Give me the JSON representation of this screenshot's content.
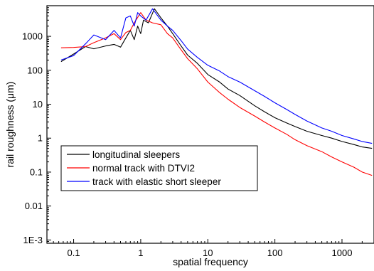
{
  "chart_data": {
    "type": "line",
    "title": "",
    "xlabel": "spatial frequency",
    "ylabel": "rail roughness (μm)",
    "x_scale": "log",
    "y_scale": "log",
    "xlim": [
      0.04,
      3000
    ],
    "ylim": [
      0.0008,
      8000
    ],
    "x_ticks": [
      {
        "value": 0.1,
        "label": "0.1"
      },
      {
        "value": 1,
        "label": "1"
      },
      {
        "value": 10,
        "label": "10"
      },
      {
        "value": 100,
        "label": "100"
      },
      {
        "value": 1000,
        "label": "1000"
      }
    ],
    "y_ticks": [
      {
        "value": 0.001,
        "label": "1E-3"
      },
      {
        "value": 0.01,
        "label": "0.01"
      },
      {
        "value": 0.1,
        "label": "0.1"
      },
      {
        "value": 1,
        "label": "1"
      },
      {
        "value": 10,
        "label": "10"
      },
      {
        "value": 100,
        "label": "100"
      },
      {
        "value": 1000,
        "label": "1000"
      }
    ],
    "grid": false,
    "legend_position": "lower-left",
    "series": [
      {
        "name": "longitudinal sleepers",
        "color": "#000000",
        "x": [
          0.065,
          0.1,
          0.15,
          0.2,
          0.3,
          0.4,
          0.5,
          0.6,
          0.7,
          0.8,
          0.9,
          1.0,
          1.1,
          1.3,
          1.6,
          2.0,
          2.5,
          3,
          4,
          5,
          7,
          10,
          15,
          20,
          30,
          50,
          70,
          100,
          150,
          200,
          300,
          500,
          700,
          1000,
          1500,
          2000,
          2800
        ],
        "y": [
          180,
          300,
          500,
          430,
          520,
          580,
          480,
          900,
          1500,
          800,
          2000,
          1200,
          3000,
          2500,
          6500,
          3500,
          2000,
          1200,
          520,
          280,
          160,
          75,
          45,
          28,
          18,
          9,
          6,
          4,
          2.8,
          2.2,
          1.6,
          1.2,
          1.0,
          0.8,
          0.65,
          0.55,
          0.5
        ]
      },
      {
        "name": "normal track with DTVI2",
        "color": "#ff0000",
        "x": [
          0.065,
          0.1,
          0.15,
          0.2,
          0.3,
          0.4,
          0.5,
          0.6,
          0.7,
          0.8,
          1.0,
          1.2,
          1.5,
          2.0,
          2.5,
          3,
          4,
          5,
          7,
          10,
          15,
          20,
          30,
          50,
          70,
          100,
          150,
          200,
          300,
          500,
          700,
          1000,
          1500,
          2000,
          2800
        ],
        "y": [
          460,
          470,
          500,
          650,
          900,
          1200,
          800,
          1300,
          1500,
          2500,
          5000,
          3000,
          2500,
          2200,
          1200,
          900,
          400,
          220,
          110,
          45,
          22,
          14,
          8,
          4.5,
          3,
          2,
          1.3,
          0.9,
          0.6,
          0.4,
          0.28,
          0.2,
          0.14,
          0.1,
          0.08
        ]
      },
      {
        "name": "track with elastic short sleeper",
        "color": "#0000ff",
        "x": [
          0.065,
          0.1,
          0.15,
          0.2,
          0.3,
          0.4,
          0.5,
          0.6,
          0.7,
          0.8,
          0.9,
          1.0,
          1.2,
          1.5,
          2.0,
          2.5,
          3,
          4,
          5,
          7,
          10,
          15,
          20,
          30,
          50,
          70,
          100,
          150,
          200,
          300,
          500,
          700,
          1000,
          1500,
          2000,
          2800
        ],
        "y": [
          200,
          270,
          600,
          1100,
          800,
          1500,
          900,
          3500,
          4000,
          2000,
          5000,
          4000,
          3000,
          6500,
          3000,
          2000,
          1500,
          750,
          420,
          240,
          140,
          95,
          65,
          45,
          25,
          17,
          11,
          7,
          5,
          3.2,
          2,
          1.6,
          1.2,
          0.95,
          0.8,
          0.7
        ]
      }
    ]
  }
}
